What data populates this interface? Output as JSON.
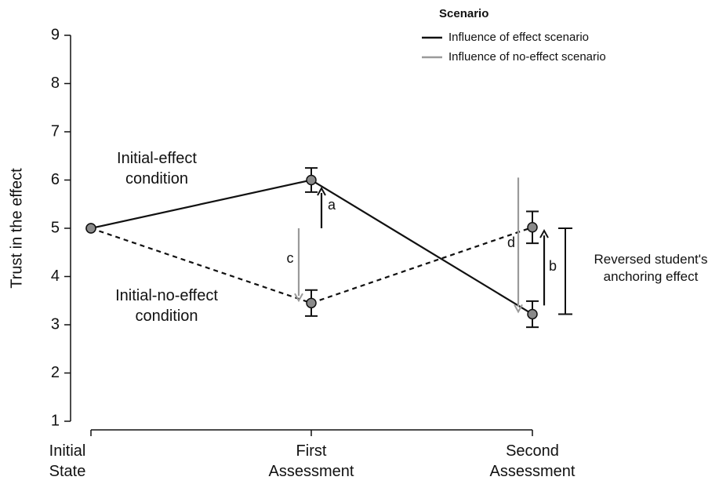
{
  "chart_data": {
    "type": "line",
    "ylabel": "Trust in the effect",
    "categories": [
      "Initial State",
      "First Assessment",
      "Second Assessment"
    ],
    "ylim": [
      1,
      9
    ],
    "yticks": [
      1,
      2,
      3,
      4,
      5,
      6,
      7,
      8,
      9
    ],
    "series": [
      {
        "name": "Initial-effect condition",
        "color": "#111111",
        "dash": false,
        "values": [
          5,
          6,
          3.22
        ],
        "errors": [
          null,
          0.25,
          0.27
        ]
      },
      {
        "name": "Initial-no-effect condition",
        "color": "#111111",
        "dash": true,
        "values": [
          5,
          3.45,
          5.02
        ],
        "errors": [
          null,
          0.27,
          0.33
        ]
      }
    ],
    "legend": {
      "title": "Scenario",
      "entries": [
        {
          "label": "Influence of effect scenario",
          "color": "#111111"
        },
        {
          "label": "Influence of no-effect scenario",
          "color": "#9a9a9a"
        }
      ]
    },
    "arrows": [
      {
        "label": "a",
        "color": "#111111",
        "from": 5.0,
        "to": 5.83
      },
      {
        "label": "c",
        "color": "#9a9a9a",
        "from": 5.0,
        "to": 3.5
      },
      {
        "label": "d",
        "color": "#9a9a9a",
        "from": 6.05,
        "to": 3.27
      },
      {
        "label": "b",
        "color": "#111111",
        "from": 3.4,
        "to": 4.95
      }
    ],
    "bracket": {
      "label": "Reversed student's anchoring effect",
      "from": 3.22,
      "to": 5
    }
  }
}
